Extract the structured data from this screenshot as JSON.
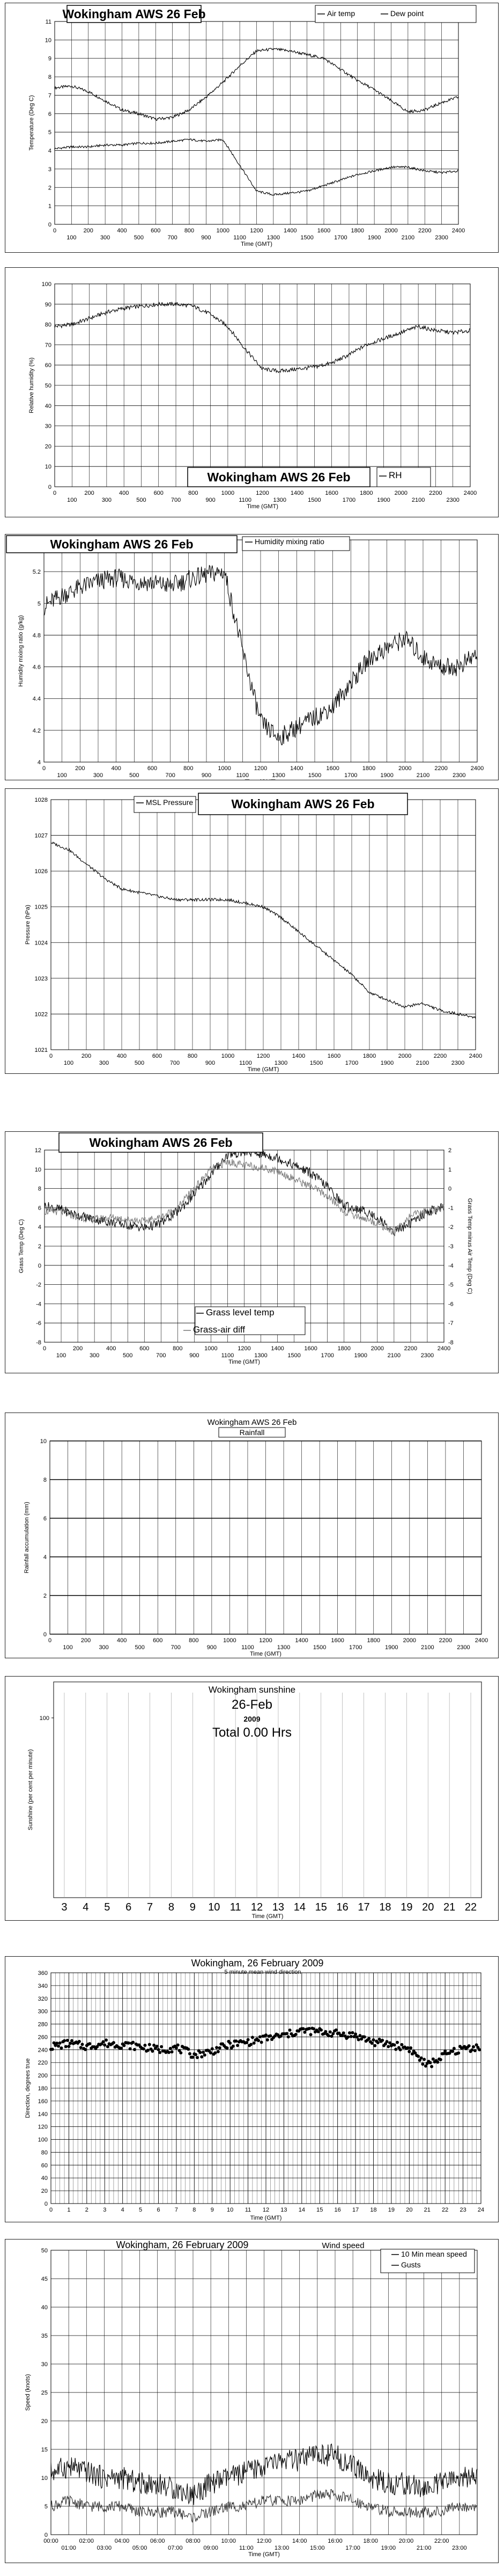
{
  "chart_data": [
    {
      "type": "line",
      "title": "Wokingham AWS 26 Feb",
      "ylabel": "Temperature (Deg C)",
      "xlabel": "Time (GMT)",
      "ylim": [
        0,
        11
      ],
      "yticks": [
        "0",
        "1",
        "2",
        "3",
        "4",
        "5",
        "6",
        "7",
        "8",
        "9",
        "10",
        "11"
      ],
      "xticks_top": [
        "0",
        "200",
        "400",
        "600",
        "800",
        "1000",
        "1200",
        "1400",
        "1600",
        "1800",
        "2000",
        "2200",
        "2400"
      ],
      "xticks_bottom": [
        "100",
        "300",
        "500",
        "700",
        "900",
        "1100",
        "1300",
        "1500",
        "1700",
        "1900",
        "2100",
        "2300"
      ],
      "legend": [
        "Air temp",
        "Dew point"
      ],
      "series": [
        {
          "name": "Air temp",
          "x": [
            0,
            100,
            200,
            300,
            400,
            500,
            600,
            700,
            800,
            900,
            1000,
            1100,
            1200,
            1300,
            1400,
            1500,
            1600,
            1700,
            1800,
            1900,
            2000,
            2100,
            2200,
            2300,
            2400
          ],
          "values": [
            7.4,
            7.5,
            7.2,
            6.7,
            6.2,
            6.0,
            5.7,
            5.8,
            6.2,
            6.9,
            7.7,
            8.6,
            9.4,
            9.5,
            9.4,
            9.2,
            9.0,
            8.4,
            7.8,
            7.3,
            6.7,
            6.1,
            6.2,
            6.6,
            6.9
          ]
        },
        {
          "name": "Dew point",
          "x": [
            0,
            100,
            200,
            300,
            400,
            500,
            600,
            700,
            800,
            900,
            1000,
            1100,
            1200,
            1300,
            1400,
            1500,
            1600,
            1700,
            1800,
            1900,
            2000,
            2100,
            2200,
            2300,
            2400
          ],
          "values": [
            4.1,
            4.2,
            4.2,
            4.3,
            4.3,
            4.4,
            4.4,
            4.5,
            4.6,
            4.5,
            4.6,
            3.2,
            1.8,
            1.6,
            1.7,
            1.8,
            2.1,
            2.4,
            2.7,
            2.9,
            3.1,
            3.1,
            2.9,
            2.8,
            2.9
          ]
        }
      ]
    },
    {
      "type": "line",
      "title": "Wokingham AWS 26 Feb",
      "ylabel": "Relative humidity (%)",
      "xlabel": "Time (GMT)",
      "ylim": [
        0,
        100
      ],
      "yticks": [
        "0",
        "10",
        "20",
        "30",
        "40",
        "50",
        "60",
        "70",
        "80",
        "90",
        "100"
      ],
      "xticks_top": [
        "0",
        "200",
        "400",
        "600",
        "800",
        "1000",
        "1200",
        "1400",
        "1600",
        "1800",
        "2000",
        "2200",
        "2400"
      ],
      "xticks_bottom": [
        "100",
        "300",
        "500",
        "700",
        "900",
        "1100",
        "1300",
        "1500",
        "1700",
        "1900",
        "2100",
        "2300"
      ],
      "legend": [
        "RH"
      ],
      "series": [
        {
          "name": "RH",
          "x": [
            0,
            100,
            200,
            300,
            400,
            500,
            600,
            700,
            800,
            900,
            1000,
            1100,
            1200,
            1300,
            1400,
            1500,
            1600,
            1700,
            1800,
            1900,
            2000,
            2100,
            2200,
            2300,
            2400
          ],
          "values": [
            79,
            80,
            83,
            86,
            88,
            89,
            90,
            90,
            89,
            85,
            79,
            68,
            58,
            57,
            58,
            59,
            61,
            65,
            70,
            73,
            76,
            79,
            77,
            76,
            77
          ]
        }
      ]
    },
    {
      "type": "line",
      "title": "Wokingham AWS 26 Feb",
      "ylabel": "Humidity mixing ratio (g/kg)",
      "xlabel": "Time (GMT)",
      "ylim": [
        4,
        5.4
      ],
      "yticks": [
        "4",
        "4.2",
        "4.4",
        "4.6",
        "4.8",
        "5",
        "5.2",
        "5.4"
      ],
      "xticks_top": [
        "0",
        "200",
        "400",
        "600",
        "800",
        "1000",
        "1200",
        "1400",
        "1600",
        "1800",
        "2000",
        "2200",
        "2400"
      ],
      "xticks_bottom": [
        "100",
        "300",
        "500",
        "700",
        "900",
        "1100",
        "1300",
        "1500",
        "1700",
        "1900",
        "2100",
        "2300"
      ],
      "legend": [
        "Humidity mixing ratio"
      ],
      "series": [
        {
          "name": "Humidity mixing ratio",
          "x": [
            0,
            100,
            200,
            300,
            400,
            500,
            600,
            700,
            800,
            900,
            1000,
            1100,
            1200,
            1300,
            1400,
            1500,
            1600,
            1700,
            1800,
            1900,
            2000,
            2100,
            2200,
            2300,
            2400
          ],
          "values": [
            4.98,
            5.05,
            5.1,
            5.14,
            5.16,
            5.14,
            5.13,
            5.11,
            5.15,
            5.18,
            5.2,
            4.7,
            4.25,
            4.15,
            4.22,
            4.28,
            4.35,
            4.5,
            4.65,
            4.72,
            4.78,
            4.66,
            4.6,
            4.6,
            4.68
          ]
        }
      ]
    },
    {
      "type": "line",
      "title": "Wokingham AWS 26 Feb",
      "ylabel": "Pressure (hPa)",
      "xlabel": "Time (GMT)",
      "ylim": [
        1021,
        1028
      ],
      "yticks": [
        "1021",
        "1022",
        "1023",
        "1024",
        "1025",
        "1026",
        "1027",
        "1028"
      ],
      "xticks_top": [
        "0",
        "200",
        "400",
        "600",
        "800",
        "1000",
        "1200",
        "1400",
        "1600",
        "1800",
        "2000",
        "2200",
        "2400"
      ],
      "xticks_bottom": [
        "100",
        "300",
        "500",
        "700",
        "900",
        "1100",
        "1300",
        "1500",
        "1700",
        "1900",
        "2100",
        "2300"
      ],
      "legend": [
        "MSL Pressure"
      ],
      "series": [
        {
          "name": "MSL Pressure",
          "x": [
            0,
            100,
            200,
            300,
            400,
            500,
            600,
            700,
            800,
            900,
            1000,
            1100,
            1200,
            1300,
            1400,
            1500,
            1600,
            1700,
            1800,
            1900,
            2000,
            2100,
            2200,
            2300,
            2400
          ],
          "values": [
            1026.8,
            1026.6,
            1026.2,
            1025.8,
            1025.5,
            1025.4,
            1025.3,
            1025.2,
            1025.2,
            1025.2,
            1025.2,
            1025.1,
            1025.0,
            1024.7,
            1024.3,
            1023.9,
            1023.5,
            1023.1,
            1022.6,
            1022.4,
            1022.2,
            1022.3,
            1022.1,
            1022.0,
            1021.9
          ]
        }
      ]
    },
    {
      "type": "line",
      "title": "Wokingham AWS 26 Feb",
      "ylabel": "Grass Temp (Deg C)",
      "ylabel_right": "Grass Temp minus Air Temp (Deg C)",
      "xlabel": "Time (GMT)",
      "ylim": [
        -8,
        12
      ],
      "ylim_right": [
        -8,
        2
      ],
      "yticks": [
        "-8",
        "-6",
        "-4",
        "-2",
        "0",
        "2",
        "4",
        "6",
        "8",
        "10",
        "12"
      ],
      "yticks_right": [
        "-8",
        "-7",
        "-6",
        "-5",
        "-4",
        "-3",
        "-2",
        "-1",
        "0",
        "1",
        "2"
      ],
      "xticks_top": [
        "0",
        "200",
        "400",
        "600",
        "800",
        "1000",
        "1200",
        "1400",
        "1600",
        "1800",
        "2000",
        "2200",
        "2400"
      ],
      "xticks_bottom": [
        "100",
        "300",
        "500",
        "700",
        "900",
        "1100",
        "1300",
        "1500",
        "1700",
        "1900",
        "2100",
        "2300"
      ],
      "legend": [
        "Grass level temp",
        "Grass-air diff"
      ],
      "series": [
        {
          "name": "Grass level temp",
          "x": [
            0,
            100,
            200,
            300,
            400,
            500,
            600,
            700,
            800,
            900,
            1000,
            1100,
            1200,
            1300,
            1400,
            1500,
            1600,
            1700,
            1800,
            1900,
            2000,
            2100,
            2200,
            2300,
            2400
          ],
          "values": [
            6.2,
            5.8,
            5.2,
            4.8,
            4.5,
            4.2,
            3.9,
            4.4,
            5.6,
            7.4,
            9.5,
            11.5,
            11.8,
            11.6,
            11.2,
            10.4,
            9.6,
            8.2,
            6.2,
            5.8,
            5.0,
            3.5,
            4.4,
            5.6,
            6.0
          ]
        },
        {
          "name": "Grass-air diff",
          "x": [
            0,
            100,
            200,
            300,
            400,
            500,
            600,
            700,
            800,
            900,
            1000,
            1100,
            1200,
            1300,
            1400,
            1500,
            1600,
            1700,
            1800,
            1900,
            2000,
            2100,
            2200,
            2300,
            2400
          ],
          "values": [
            -1.2,
            -1.2,
            -1.5,
            -1.6,
            -1.5,
            -1.6,
            -1.7,
            -1.5,
            -1.0,
            0.0,
            1.0,
            1.4,
            1.2,
            1.1,
            0.9,
            0.5,
            0.1,
            -0.4,
            -1.2,
            -1.5,
            -1.8,
            -2.3,
            -1.4,
            -1.2,
            -1.0
          ]
        }
      ]
    },
    {
      "type": "line",
      "title": "Wokingham AWS 26 Feb",
      "subtitle": "Rainfall",
      "ylabel": "Rainfall accumulation (mm)",
      "xlabel": "Time (GMT)",
      "ylim": [
        0,
        10
      ],
      "yticks": [
        "0",
        "2",
        "4",
        "6",
        "8",
        "10"
      ],
      "xticks_top": [
        "0",
        "200",
        "400",
        "600",
        "800",
        "1000",
        "1200",
        "1400",
        "1600",
        "1800",
        "2000",
        "2200",
        "2400"
      ],
      "xticks_bottom": [
        "100",
        "300",
        "500",
        "700",
        "900",
        "1100",
        "1300",
        "1500",
        "1700",
        "1900",
        "2100",
        "2300"
      ],
      "series": [
        {
          "name": "",
          "x": [
            0,
            2400
          ],
          "values": [
            0,
            0
          ]
        }
      ]
    },
    {
      "type": "bar",
      "title": "Wokingham sunshine",
      "subtitle": "26-Feb",
      "year": "2009",
      "total": "Total 0.00 Hrs",
      "ylabel": "Sunshine (per cent per minute)",
      "xlabel": "Time (GMT)",
      "ylim": [
        0,
        120
      ],
      "yticks": [
        "100"
      ],
      "categories": [
        "3",
        "4",
        "5",
        "6",
        "7",
        "8",
        "9",
        "10",
        "11",
        "12",
        "13",
        "14",
        "15",
        "16",
        "17",
        "18",
        "19",
        "20",
        "21",
        "22"
      ],
      "values": [
        0,
        0,
        0,
        0,
        0,
        0,
        0,
        0,
        0,
        0,
        0,
        0,
        0,
        0,
        0,
        0,
        0,
        0,
        0,
        0
      ]
    },
    {
      "type": "scatter",
      "title": "Wokingham,  26 February 2009",
      "subtitle": "5 minute mean wind direction",
      "ylabel": "Direction, degrees true",
      "xlabel": "Time (GMT)",
      "ylim": [
        0,
        360
      ],
      "yticks": [
        "0",
        "20",
        "40",
        "60",
        "80",
        "100",
        "120",
        "140",
        "160",
        "180",
        "200",
        "220",
        "240",
        "260",
        "280",
        "300",
        "320",
        "340",
        "360"
      ],
      "xticks": [
        "0",
        "1",
        "2",
        "3",
        "4",
        "5",
        "6",
        "7",
        "8",
        "9",
        "10",
        "11",
        "12",
        "13",
        "14",
        "15",
        "16",
        "17",
        "18",
        "19",
        "20",
        "21",
        "22",
        "23",
        "24"
      ],
      "series": [
        {
          "name": "",
          "x": [
            0,
            1,
            2,
            3,
            4,
            5,
            6,
            7,
            8,
            9,
            10,
            11,
            12,
            13,
            14,
            15,
            16,
            17,
            18,
            19,
            20,
            21,
            22,
            23,
            24
          ],
          "values": [
            245,
            250,
            245,
            250,
            248,
            245,
            240,
            243,
            232,
            238,
            248,
            252,
            258,
            262,
            270,
            268,
            265,
            262,
            252,
            248,
            242,
            215,
            232,
            242,
            245
          ]
        }
      ]
    },
    {
      "type": "line",
      "title": "Wokingham,  26 February 2009",
      "subtitle": "Wind speed",
      "ylabel": "Speed (knots)",
      "xlabel": "Time (GMT)",
      "ylim": [
        0,
        50
      ],
      "yticks": [
        "0",
        "5",
        "10",
        "15",
        "20",
        "25",
        "30",
        "35",
        "40",
        "45",
        "50"
      ],
      "xticks_top": [
        "00:00",
        "02:00",
        "04:00",
        "06:00",
        "08:00",
        "10:00",
        "12:00",
        "14:00",
        "16:00",
        "18:00",
        "20:00",
        "22:00"
      ],
      "xticks_bottom": [
        "01:00",
        "03:00",
        "05:00",
        "07:00",
        "09:00",
        "11:00",
        "13:00",
        "15:00",
        "17:00",
        "19:00",
        "21:00",
        "23:00"
      ],
      "legend": [
        "10 Min mean speed",
        "Gusts"
      ],
      "series": [
        {
          "name": "10 Min mean speed",
          "x": [
            0,
            1,
            2,
            3,
            4,
            5,
            6,
            7,
            8,
            9,
            10,
            11,
            12,
            13,
            14,
            15,
            16,
            17,
            18,
            19,
            20,
            21,
            22,
            23,
            24
          ],
          "values": [
            5,
            6,
            5,
            5,
            5,
            4,
            4,
            4,
            3,
            4,
            5,
            5,
            6,
            6,
            6,
            7,
            7,
            6,
            5,
            4,
            4,
            4,
            4,
            5,
            5
          ]
        },
        {
          "name": "Gusts",
          "x": [
            0,
            1,
            2,
            3,
            4,
            5,
            6,
            7,
            8,
            9,
            10,
            11,
            12,
            13,
            14,
            15,
            16,
            17,
            18,
            19,
            20,
            21,
            22,
            23,
            24
          ],
          "values": [
            11,
            12,
            11,
            10,
            10,
            9,
            9,
            8,
            7,
            9,
            10,
            11,
            12,
            13,
            13,
            14,
            14,
            12,
            10,
            9,
            9,
            8,
            9,
            10,
            10
          ]
        }
      ]
    }
  ]
}
